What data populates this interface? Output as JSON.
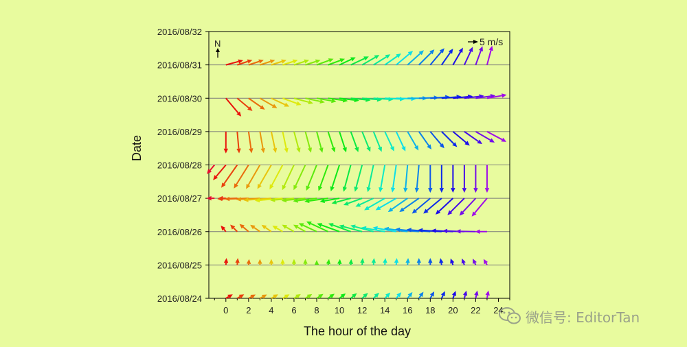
{
  "chart_data": {
    "type": "wind-barb-vector",
    "xlabel": "The hour of the day",
    "ylabel": "Date",
    "x_ticks": [
      0,
      2,
      4,
      6,
      8,
      10,
      12,
      14,
      16,
      18,
      20,
      22,
      24
    ],
    "x_tick_labels": [
      "0",
      "2",
      "4",
      "6",
      "8",
      "10",
      "12",
      "14",
      "16",
      "18",
      "20",
      "22",
      "24"
    ],
    "xlim": [
      -1.5,
      25
    ],
    "y_categories": [
      "2016/08/24",
      "2016/08/25",
      "2016/08/26",
      "2016/08/27",
      "2016/08/28",
      "2016/08/29",
      "2016/08/30",
      "2016/08/31",
      "2016/08/32"
    ],
    "north_label": "N",
    "scale_label": "5 m/s",
    "scale_value_ms": 5,
    "series": [
      {
        "date": "2016/08/24",
        "hours": [
          0,
          1,
          2,
          3,
          4,
          5,
          6,
          7,
          8,
          9,
          10,
          11,
          12,
          13,
          14,
          15,
          16,
          17,
          18,
          19,
          20,
          21,
          22,
          23
        ],
        "direction_deg": [
          60,
          60,
          62,
          62,
          60,
          60,
          58,
          58,
          57,
          55,
          52,
          50,
          47,
          45,
          43,
          40,
          38,
          35,
          30,
          25,
          20,
          15,
          12,
          10
        ],
        "speed_ms": [
          4,
          4,
          4,
          4,
          4,
          4,
          4,
          4,
          4,
          4,
          4,
          4,
          4,
          4,
          4,
          4,
          4,
          4,
          4,
          4,
          4,
          4,
          4,
          4
        ]
      },
      {
        "date": "2016/08/25",
        "hours": [
          0,
          1,
          2,
          3,
          4,
          5,
          6,
          7,
          8,
          9,
          10,
          11,
          12,
          13,
          14,
          15,
          16,
          17,
          18,
          19,
          20,
          21,
          22,
          23
        ],
        "direction_deg": [
          5,
          5,
          5,
          0,
          0,
          0,
          0,
          0,
          0,
          10,
          5,
          5,
          5,
          5,
          5,
          5,
          5,
          0,
          0,
          -10,
          -20,
          -20,
          -25,
          -30
        ],
        "speed_ms": [
          3.5,
          3.5,
          3,
          3,
          3,
          3,
          3,
          3,
          2.5,
          3,
          3,
          3,
          3.5,
          3.5,
          3.5,
          3.5,
          3.5,
          3.5,
          3.5,
          3.5,
          3.5,
          3.5,
          3.5,
          3.5
        ]
      },
      {
        "date": "2016/08/26",
        "hours": [
          0,
          1,
          2,
          3,
          4,
          5,
          6,
          7,
          8,
          9,
          10,
          11,
          12,
          13,
          14,
          15,
          16,
          17,
          18,
          19,
          20,
          21,
          22,
          23
        ],
        "direction_deg": [
          -40,
          -45,
          -50,
          -55,
          -55,
          -60,
          -60,
          -60,
          -65,
          -65,
          -70,
          -70,
          -75,
          -75,
          -80,
          -80,
          -82,
          -84,
          -85,
          -86,
          -87,
          -88,
          -89,
          -90
        ],
        "speed_ms": [
          4,
          5,
          6,
          6,
          6,
          6,
          7,
          7,
          10,
          12,
          12,
          12,
          12,
          12,
          12,
          12,
          12,
          12,
          12,
          12,
          11,
          11,
          10,
          6
        ]
      },
      {
        "date": "2016/08/27",
        "hours": [
          -1,
          0,
          1,
          2,
          3,
          4,
          5,
          6,
          7,
          8,
          9,
          10,
          11,
          12,
          13,
          14,
          15,
          16,
          17,
          18,
          19,
          20,
          21,
          22,
          23
        ],
        "direction_deg": [
          -90,
          -90,
          -92,
          -92,
          -93,
          -94,
          -95,
          -95,
          -96,
          -97,
          -98,
          -100,
          -105,
          -110,
          -115,
          -120,
          -120,
          -125,
          -125,
          -130,
          -130,
          -133,
          -135,
          -137,
          -140
        ],
        "speed_ms": [
          4,
          4,
          10,
          12,
          12,
          14,
          14,
          12,
          12,
          12,
          12,
          10,
          10,
          10,
          10,
          12,
          12,
          12,
          12,
          12,
          12,
          12,
          12,
          12,
          12
        ]
      },
      {
        "date": "2016/08/28",
        "hours": [
          -1,
          0,
          1,
          2,
          3,
          4,
          5,
          6,
          7,
          8,
          9,
          10,
          11,
          12,
          13,
          14,
          15,
          16,
          17,
          18,
          19,
          20,
          21,
          22,
          23
        ],
        "direction_deg": [
          -140,
          -140,
          -145,
          -148,
          -150,
          -150,
          -152,
          -155,
          -155,
          -158,
          -160,
          -162,
          -165,
          -165,
          -168,
          -170,
          -172,
          -175,
          -175,
          -180,
          -180,
          -180,
          -180,
          -180,
          -180
        ],
        "speed_ms": [
          6,
          10,
          14,
          14,
          14,
          14,
          14,
          14,
          14,
          14,
          14,
          14,
          14,
          14,
          14,
          14,
          14,
          14,
          14,
          14,
          14,
          14,
          14,
          14,
          14
        ]
      },
      {
        "date": "2016/08/29",
        "hours": [
          0,
          1,
          2,
          3,
          4,
          5,
          6,
          7,
          8,
          9,
          10,
          11,
          12,
          13,
          14,
          15,
          16,
          17,
          18,
          19,
          20,
          21,
          22,
          23
        ],
        "direction_deg": [
          180,
          175,
          172,
          170,
          168,
          168,
          165,
          165,
          165,
          162,
          162,
          160,
          158,
          158,
          155,
          155,
          150,
          145,
          140,
          135,
          130,
          125,
          120,
          118
        ],
        "speed_ms": [
          11,
          11,
          11,
          11,
          11,
          11,
          11,
          11,
          11,
          11,
          11,
          11,
          11,
          11,
          11,
          11,
          11,
          11,
          11,
          11,
          11,
          11,
          11,
          11
        ]
      },
      {
        "date": "2016/08/30",
        "hours": [
          0,
          1,
          2,
          3,
          4,
          5,
          6,
          7,
          8,
          9,
          10,
          11,
          12,
          13,
          14,
          15,
          16,
          17,
          18,
          19,
          20,
          21,
          22,
          23
        ],
        "direction_deg": [
          140,
          130,
          125,
          120,
          115,
          110,
          105,
          102,
          100,
          98,
          97,
          96,
          95,
          94,
          93,
          92,
          90,
          88,
          86,
          85,
          84,
          83,
          82,
          80
        ],
        "speed_ms": [
          12,
          10,
          10,
          10,
          10,
          10,
          10,
          10,
          10,
          10,
          10,
          10,
          10,
          10,
          10,
          10,
          10,
          10,
          10,
          10,
          10,
          10,
          10,
          10
        ]
      },
      {
        "date": "2016/08/31",
        "hours": [
          0,
          1,
          2,
          3,
          4,
          5,
          6,
          7,
          8,
          9,
          10,
          11,
          12,
          13,
          14,
          15,
          16,
          17,
          18,
          19,
          20,
          21,
          22,
          23
        ],
        "direction_deg": [
          75,
          72,
          72,
          72,
          72,
          72,
          72,
          72,
          70,
          70,
          65,
          65,
          60,
          58,
          55,
          50,
          48,
          45,
          40,
          35,
          30,
          25,
          20,
          15
        ],
        "speed_ms": [
          9,
          8,
          8,
          8,
          8,
          8,
          8,
          8,
          9,
          9,
          9,
          10,
          10,
          10,
          10,
          11,
          11,
          11,
          11,
          10,
          10,
          10,
          10,
          10
        ]
      }
    ]
  },
  "watermark": {
    "text": "微信号: EditorTan"
  }
}
